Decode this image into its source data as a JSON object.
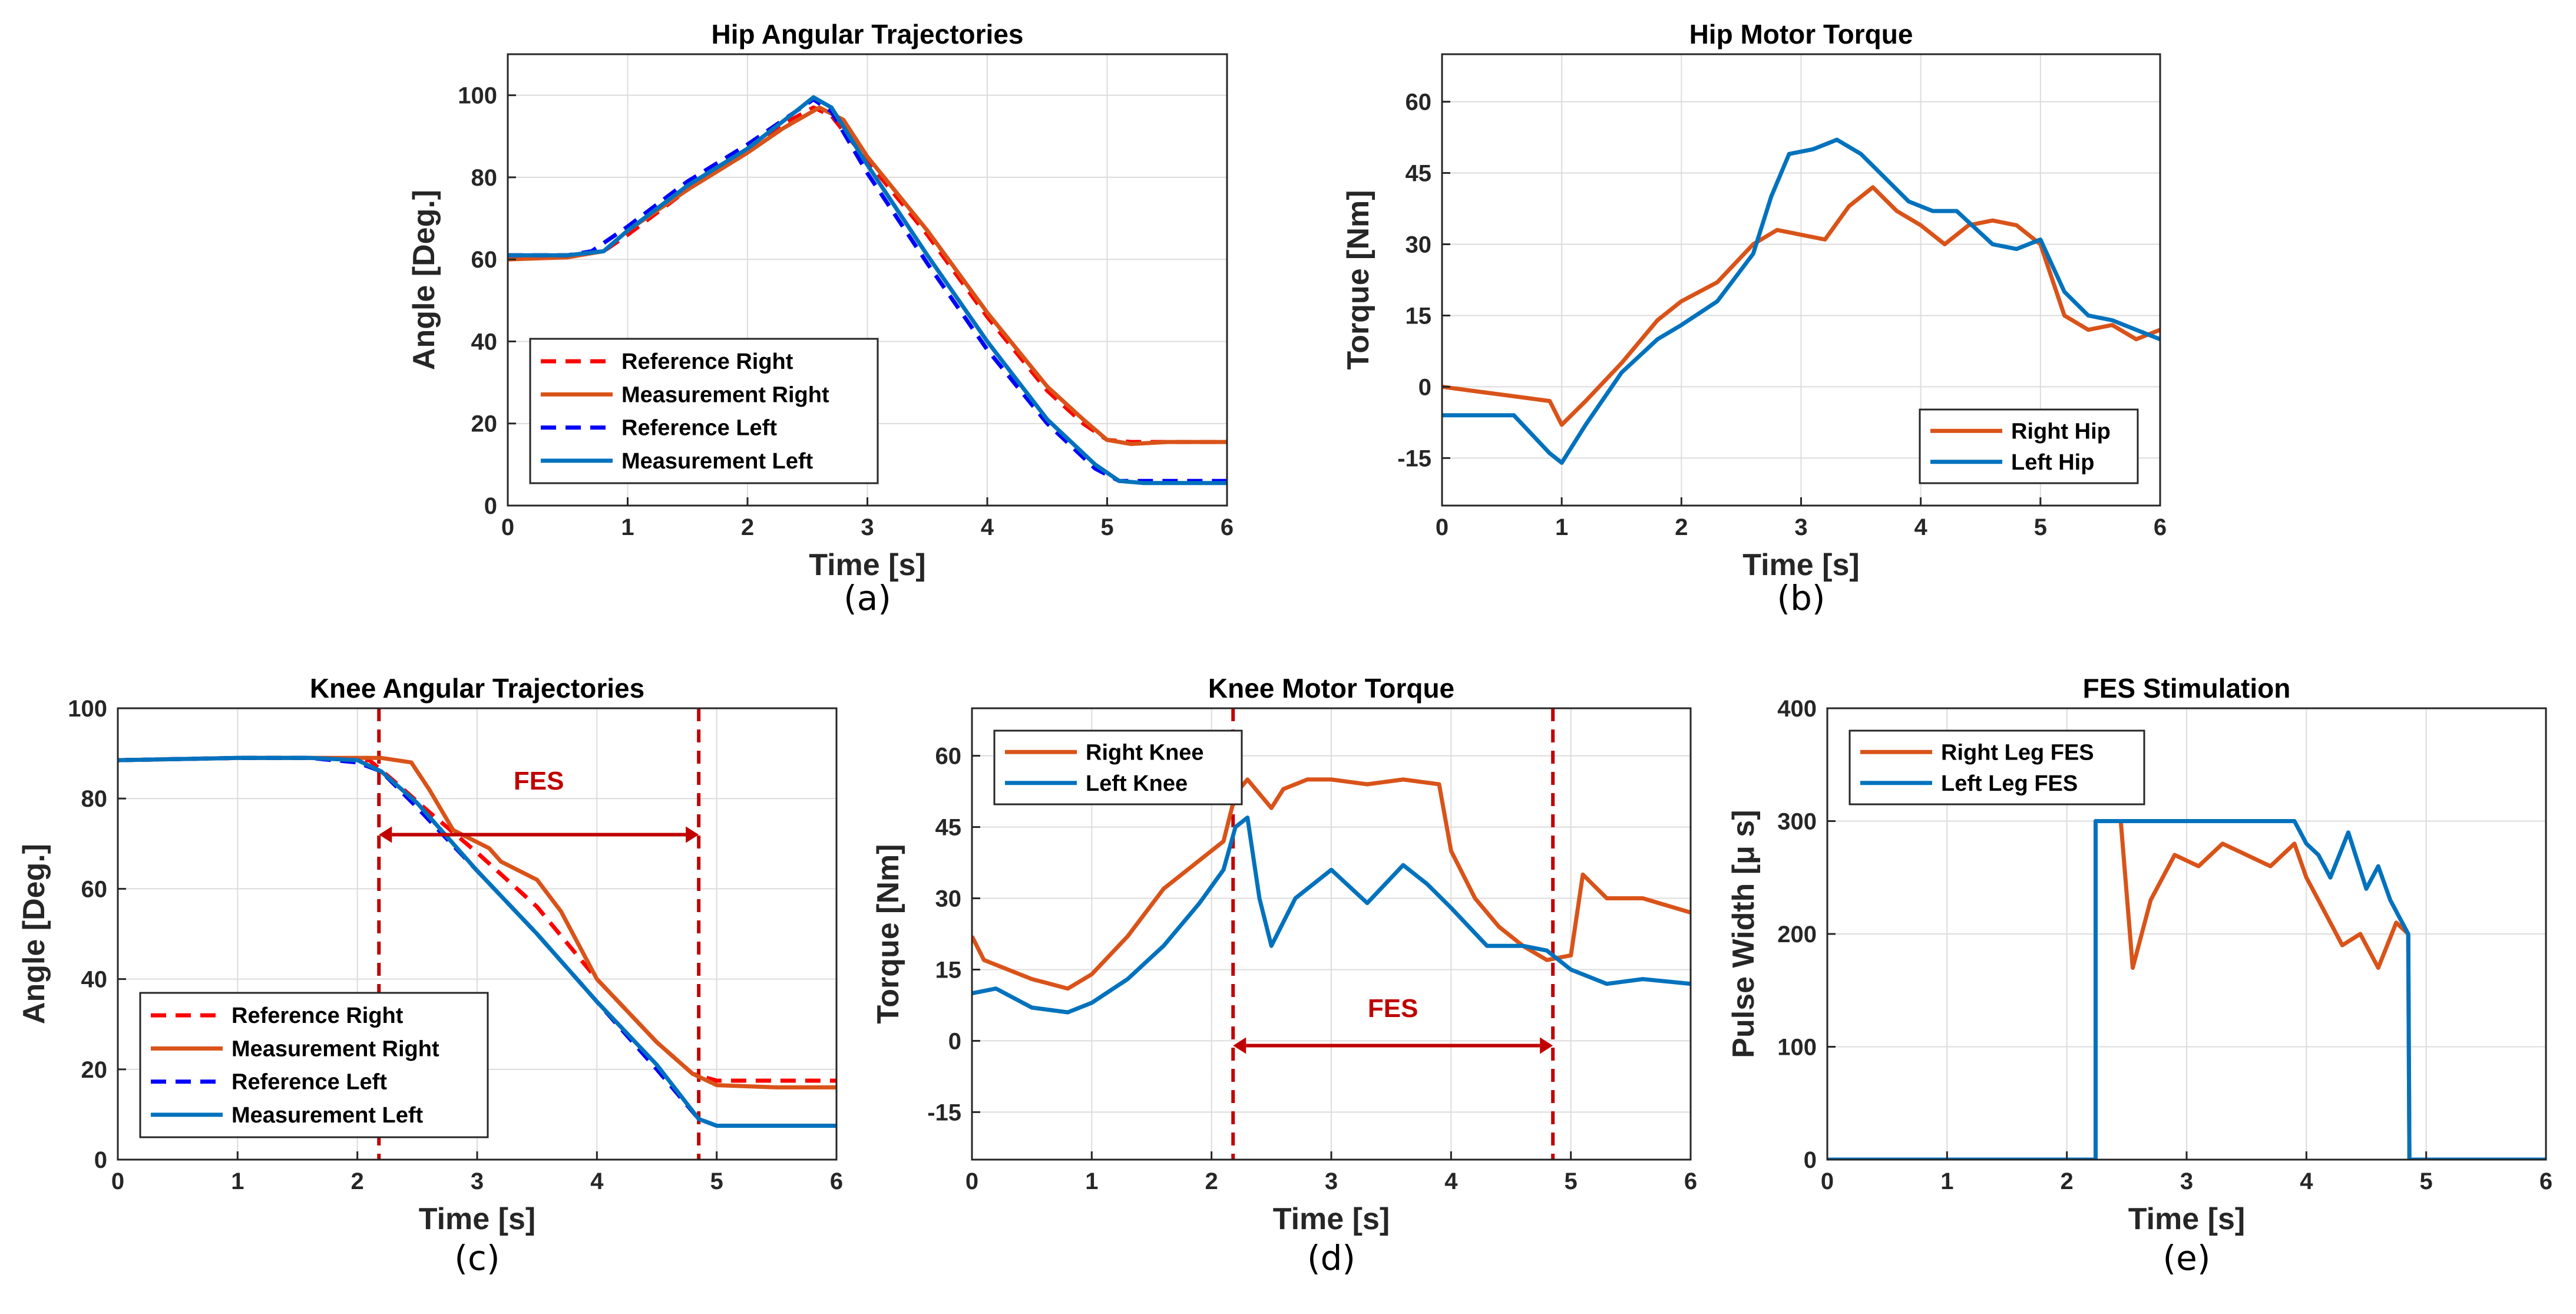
{
  "chart_data": [
    {
      "id": "a",
      "type": "line",
      "title": "Hip Angular Trajectories",
      "subcaption": "(a)",
      "xlabel": "Time [s]",
      "ylabel": "Angle [Deg.]",
      "xlim": [
        0,
        6
      ],
      "ylim": [
        0,
        110
      ],
      "xticks": [
        0,
        1,
        2,
        3,
        4,
        5,
        6
      ],
      "yticks": [
        0,
        20,
        40,
        60,
        80,
        100
      ],
      "grid": true,
      "legend_position": "bottom-left",
      "series": [
        {
          "name": "Reference Right",
          "color": "#ff0000",
          "dash": true,
          "x": [
            0,
            0.5,
            0.8,
            1.0,
            1.5,
            2.0,
            2.3,
            2.55,
            2.7,
            3.0,
            3.5,
            4.0,
            4.5,
            4.8,
            5.0,
            5.2,
            5.5,
            6.0
          ],
          "y": [
            61,
            61,
            62,
            66,
            77,
            87,
            93,
            97,
            95,
            84,
            66,
            46,
            28,
            20,
            16,
            15.5,
            15.5,
            15.5
          ]
        },
        {
          "name": "Measurement Right",
          "color": "#d95319",
          "dash": false,
          "x": [
            0,
            0.5,
            0.8,
            1.0,
            1.5,
            2.0,
            2.3,
            2.6,
            2.8,
            3.0,
            3.5,
            4.0,
            4.5,
            4.8,
            5.0,
            5.2,
            5.5,
            6.0
          ],
          "y": [
            60,
            60.5,
            62,
            67,
            77,
            86,
            92,
            97,
            94,
            85,
            67,
            47,
            29,
            21,
            16,
            15,
            15.5,
            15.5
          ]
        },
        {
          "name": "Reference Left",
          "color": "#0000ff",
          "dash": true,
          "x": [
            0,
            0.5,
            0.7,
            1.0,
            1.5,
            2.0,
            2.4,
            2.55,
            2.7,
            3.0,
            3.5,
            4.0,
            4.5,
            4.9,
            5.1,
            5.3,
            5.6,
            6.0
          ],
          "y": [
            61,
            61,
            62,
            68,
            79,
            88,
            96,
            99,
            96,
            81,
            59,
            38,
            20,
            9,
            6,
            6,
            6,
            6
          ]
        },
        {
          "name": "Measurement Left",
          "color": "#0072bd",
          "dash": false,
          "x": [
            0,
            0.5,
            0.8,
            1.0,
            1.5,
            2.0,
            2.4,
            2.55,
            2.7,
            3.0,
            3.5,
            4.0,
            4.5,
            4.9,
            5.1,
            5.3,
            5.6,
            6.0
          ],
          "y": [
            61,
            61,
            62,
            67,
            78,
            87,
            96,
            99.5,
            97,
            83,
            61,
            40,
            21,
            10,
            6,
            5.5,
            5.5,
            5.5
          ]
        }
      ]
    },
    {
      "id": "b",
      "type": "line",
      "title": "Hip Motor Torque",
      "subcaption": "(b)",
      "xlabel": "Time [s]",
      "ylabel": "Torque [Nm]",
      "xlim": [
        0,
        6
      ],
      "ylim": [
        -25,
        70
      ],
      "xticks": [
        0,
        1,
        2,
        3,
        4,
        5,
        6
      ],
      "yticks": [
        -15,
        0,
        15,
        30,
        45,
        60
      ],
      "grid": true,
      "legend_position": "bottom-right",
      "series": [
        {
          "name": "Right Hip",
          "color": "#d95319",
          "x": [
            0,
            0.3,
            0.6,
            0.9,
            1.0,
            1.2,
            1.5,
            1.8,
            2.0,
            2.3,
            2.6,
            2.8,
            3.0,
            3.2,
            3.4,
            3.6,
            3.8,
            4.0,
            4.2,
            4.4,
            4.6,
            4.8,
            5.0,
            5.2,
            5.4,
            5.6,
            5.8,
            6.0
          ],
          "y": [
            0,
            -1,
            -2,
            -3,
            -8,
            -3,
            5,
            14,
            18,
            22,
            30,
            33,
            32,
            31,
            38,
            42,
            37,
            34,
            30,
            34,
            35,
            34,
            30,
            15,
            12,
            13,
            10,
            12
          ]
        },
        {
          "name": "Left Hip",
          "color": "#0072bd",
          "x": [
            0,
            0.3,
            0.6,
            0.9,
            1.0,
            1.2,
            1.5,
            1.8,
            2.0,
            2.3,
            2.6,
            2.75,
            2.9,
            3.1,
            3.3,
            3.5,
            3.7,
            3.9,
            4.1,
            4.3,
            4.6,
            4.8,
            5.0,
            5.2,
            5.4,
            5.6,
            5.8,
            6.0
          ],
          "y": [
            -6,
            -6,
            -6,
            -14,
            -16,
            -8,
            3,
            10,
            13,
            18,
            28,
            40,
            49,
            50,
            52,
            49,
            44,
            39,
            37,
            37,
            30,
            29,
            31,
            20,
            15,
            14,
            12,
            10
          ]
        }
      ]
    },
    {
      "id": "c",
      "type": "line",
      "title": "Knee Angular Trajectories",
      "subcaption": "(c)",
      "xlabel": "Time [s]",
      "ylabel": "Angle [Deg.]",
      "xlim": [
        0,
        6
      ],
      "ylim": [
        0,
        100
      ],
      "xticks": [
        0,
        1,
        2,
        3,
        4,
        5,
        6
      ],
      "yticks": [
        0,
        20,
        40,
        60,
        80,
        100
      ],
      "grid": true,
      "legend_position": "bottom-left",
      "annotations": {
        "fes_label": "FES",
        "fes_start": 2.18,
        "fes_end": 4.85,
        "fes_label_y": 82,
        "fes_arrow_y": 72
      },
      "series": [
        {
          "name": "Reference Right",
          "color": "#ff0000",
          "dash": true,
          "x": [
            0,
            1,
            1.6,
            2.1,
            2.3,
            2.6,
            3.0,
            3.5,
            4.0,
            4.5,
            4.8,
            5.0,
            5.5,
            6.0
          ],
          "y": [
            88.5,
            89,
            89,
            88.5,
            84,
            77,
            68,
            56,
            40,
            26,
            19,
            17.5,
            17.5,
            17.5
          ]
        },
        {
          "name": "Measurement Right",
          "color": "#d95319",
          "dash": false,
          "x": [
            0,
            1,
            1.6,
            2.2,
            2.45,
            2.6,
            2.8,
            3.1,
            3.2,
            3.5,
            3.7,
            3.9,
            4.0,
            4.5,
            4.8,
            5.0,
            5.5,
            6.0
          ],
          "y": [
            88.5,
            89,
            89,
            89,
            88,
            82,
            73,
            69,
            66,
            62,
            55,
            45,
            40,
            26,
            19,
            16.5,
            16,
            16
          ]
        },
        {
          "name": "Reference Left",
          "color": "#0000ff",
          "dash": true,
          "x": [
            0,
            1,
            1.6,
            2.0,
            2.2,
            2.5,
            3.0,
            3.5,
            4.0,
            4.5,
            4.85,
            5.0,
            5.5,
            6.0
          ],
          "y": [
            88.5,
            89,
            89,
            88,
            86,
            78,
            64,
            50,
            35,
            20,
            9,
            7.5,
            7.5,
            7.5
          ]
        },
        {
          "name": "Measurement Left",
          "color": "#0072bd",
          "dash": false,
          "x": [
            0,
            1,
            1.6,
            2.0,
            2.2,
            2.5,
            3.0,
            3.5,
            4.0,
            4.5,
            4.85,
            5.0,
            5.5,
            6.0
          ],
          "y": [
            88.5,
            89,
            89,
            88.5,
            86,
            79,
            64,
            50,
            35,
            21,
            9,
            7.5,
            7.5,
            7.5
          ]
        }
      ]
    },
    {
      "id": "d",
      "type": "line",
      "title": "Knee Motor Torque",
      "subcaption": "(d)",
      "xlabel": "Time [s]",
      "ylabel": "Torque [Nm]",
      "xlim": [
        0,
        6
      ],
      "ylim": [
        -25,
        70
      ],
      "xticks": [
        0,
        1,
        2,
        3,
        4,
        5,
        6
      ],
      "yticks": [
        -15,
        0,
        15,
        30,
        45,
        60
      ],
      "grid": true,
      "legend_position": "top-left",
      "annotations": {
        "fes_label": "FES",
        "fes_start": 2.18,
        "fes_end": 4.85,
        "fes_label_y": 5,
        "fes_arrow_y": -1
      },
      "series": [
        {
          "name": "Right Knee",
          "color": "#d95319",
          "x": [
            0,
            0.1,
            0.5,
            0.8,
            1.0,
            1.3,
            1.6,
            1.9,
            2.1,
            2.2,
            2.3,
            2.5,
            2.6,
            2.8,
            3.0,
            3.3,
            3.6,
            3.9,
            4.0,
            4.2,
            4.4,
            4.6,
            4.8,
            5.0,
            5.1,
            5.3,
            5.6,
            6.0
          ],
          "y": [
            22,
            17,
            13,
            11,
            14,
            22,
            32,
            38,
            42,
            52,
            55,
            49,
            53,
            55,
            55,
            54,
            55,
            54,
            40,
            30,
            24,
            20,
            17,
            18,
            35,
            30,
            30,
            27
          ]
        },
        {
          "name": "Left Knee",
          "color": "#0072bd",
          "x": [
            0,
            0.2,
            0.5,
            0.8,
            1.0,
            1.3,
            1.6,
            1.9,
            2.1,
            2.2,
            2.3,
            2.4,
            2.5,
            2.7,
            3.0,
            3.3,
            3.6,
            3.8,
            4.0,
            4.3,
            4.6,
            4.8,
            5.0,
            5.3,
            5.6,
            6.0
          ],
          "y": [
            10,
            11,
            7,
            6,
            8,
            13,
            20,
            29,
            36,
            45,
            47,
            30,
            20,
            30,
            36,
            29,
            37,
            33,
            28,
            20,
            20,
            19,
            15,
            12,
            13,
            12
          ]
        }
      ]
    },
    {
      "id": "e",
      "type": "line",
      "title": "FES Stimulation",
      "subcaption": "(e)",
      "xlabel": "Time [s]",
      "ylabel": "Pulse Width [μ s]",
      "xlim": [
        0,
        6
      ],
      "ylim": [
        0,
        400
      ],
      "xticks": [
        0,
        1,
        2,
        3,
        4,
        5,
        6
      ],
      "yticks": [
        0,
        100,
        200,
        300,
        400
      ],
      "grid": true,
      "legend_position": "top-left",
      "series": [
        {
          "name": "Right Leg FES",
          "color": "#d95319",
          "x": [
            0,
            2.24,
            2.24,
            2.45,
            2.55,
            2.7,
            2.9,
            3.1,
            3.3,
            3.5,
            3.7,
            3.9,
            4.0,
            4.1,
            4.3,
            4.45,
            4.6,
            4.75,
            4.85,
            4.86,
            6.0
          ],
          "y": [
            0,
            0,
            300,
            300,
            170,
            230,
            270,
            260,
            280,
            270,
            260,
            280,
            250,
            230,
            190,
            200,
            170,
            210,
            200,
            0,
            0
          ]
        },
        {
          "name": "Left Leg FES",
          "color": "#0072bd",
          "x": [
            0,
            2.24,
            2.24,
            2.6,
            3.0,
            3.5,
            3.9,
            4.0,
            4.1,
            4.2,
            4.35,
            4.5,
            4.6,
            4.7,
            4.8,
            4.85,
            4.86,
            6.0
          ],
          "y": [
            0,
            0,
            300,
            300,
            300,
            300,
            300,
            280,
            270,
            250,
            290,
            240,
            260,
            230,
            210,
            200,
            0,
            0
          ]
        }
      ]
    }
  ]
}
